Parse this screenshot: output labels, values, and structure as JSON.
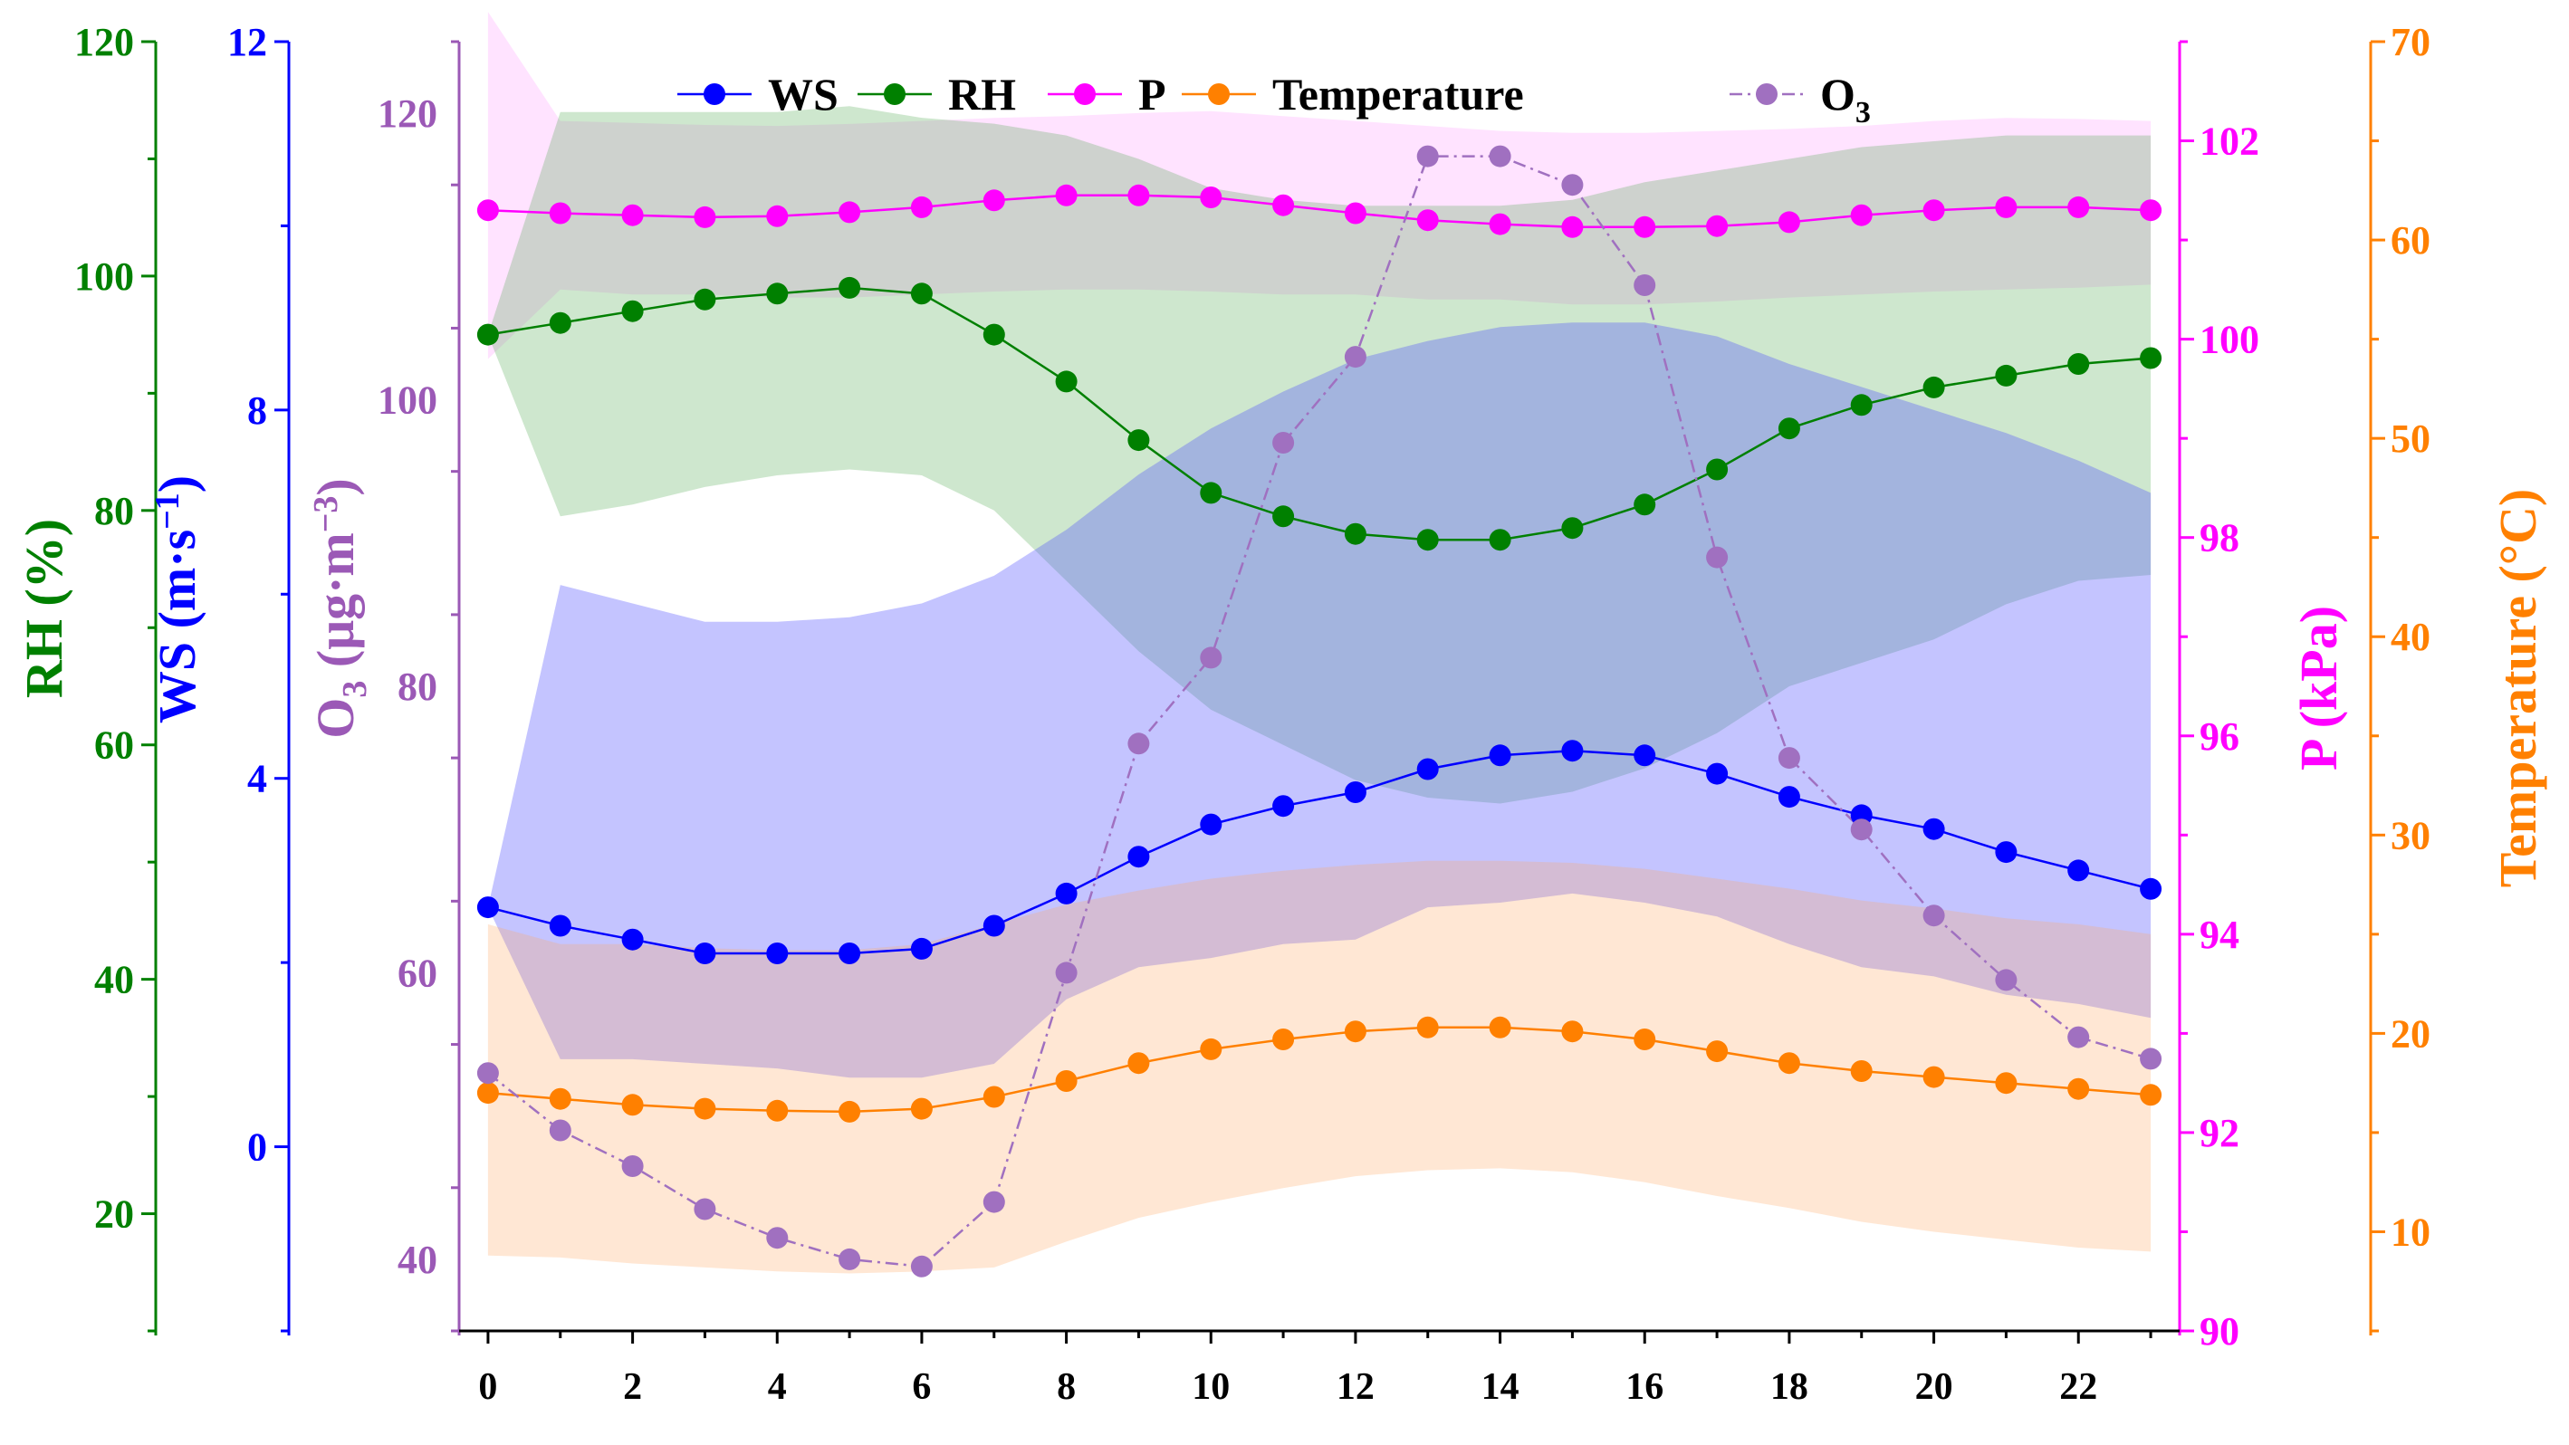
{
  "chart_data": {
    "type": "line",
    "x": [
      0,
      1,
      2,
      3,
      4,
      5,
      6,
      7,
      8,
      9,
      10,
      11,
      12,
      13,
      14,
      15,
      16,
      17,
      18,
      19,
      20,
      21,
      22,
      23
    ],
    "x_ticks": [
      0,
      2,
      4,
      6,
      8,
      10,
      12,
      14,
      16,
      18,
      20,
      22
    ],
    "xlim": [
      -0.4,
      23.4
    ],
    "axes": {
      "rh": {
        "label": "RH (%)",
        "range": [
          10,
          120
        ],
        "ticks": [
          20,
          40,
          60,
          80,
          100,
          120
        ],
        "color": "#008000"
      },
      "ws": {
        "label": "WS (m·s⁻¹)",
        "label_main": "WS",
        "label_unit": "(m·s",
        "label_sup": "−1",
        "label_end": ")",
        "range": [
          -2,
          12
        ],
        "ticks": [
          0,
          4,
          8,
          12
        ],
        "color": "#0000ff"
      },
      "o3": {
        "label": "O₃ (μg·m⁻³)",
        "label_main": "O",
        "label_sub": "3",
        "label_unit": " (μg·m",
        "label_sup": "−3",
        "label_end": ")",
        "range": [
          35,
          125
        ],
        "ticks": [
          40,
          60,
          80,
          100,
          120
        ],
        "color": "#9b59b6"
      },
      "p": {
        "label": "P (kPa)",
        "range": [
          90,
          103
        ],
        "ticks": [
          90,
          92,
          94,
          96,
          98,
          100,
          102
        ],
        "color": "#ff00ff"
      },
      "temp": {
        "label": "Temperature (°C)",
        "range": [
          5,
          70
        ],
        "ticks": [
          10,
          20,
          30,
          40,
          50,
          60,
          70
        ],
        "color": "#ff8000"
      }
    },
    "legend": {
      "placement": "top",
      "entries": [
        {
          "key": "ws",
          "label": "WS"
        },
        {
          "key": "rh",
          "label": "RH"
        },
        {
          "key": "p",
          "label": "P"
        },
        {
          "key": "temp",
          "label": "Temperature"
        },
        {
          "key": "o3",
          "label": "O",
          "sub": "3"
        }
      ]
    },
    "series": [
      {
        "key": "ws",
        "name": "WS",
        "axis": "ws",
        "color": "#0000ff",
        "band_fill": "rgba(70,70,255,0.32)",
        "dash": false,
        "values": [
          2.6,
          2.4,
          2.25,
          2.1,
          2.1,
          2.1,
          2.15,
          2.4,
          2.75,
          3.15,
          3.5,
          3.7,
          3.85,
          4.1,
          4.25,
          4.3,
          4.25,
          4.05,
          3.8,
          3.6,
          3.45,
          3.2,
          3.0,
          2.8
        ],
        "upper": [
          2.6,
          6.1,
          5.9,
          5.7,
          5.7,
          5.75,
          5.9,
          6.2,
          6.7,
          7.3,
          7.8,
          8.2,
          8.55,
          8.75,
          8.9,
          8.95,
          8.95,
          8.8,
          8.5,
          8.25,
          8.0,
          7.75,
          7.45,
          7.1
        ],
        "lower": [
          2.6,
          0.95,
          0.95,
          0.9,
          0.85,
          0.75,
          0.75,
          0.9,
          1.6,
          1.95,
          2.05,
          2.2,
          2.25,
          2.6,
          2.65,
          2.75,
          2.65,
          2.5,
          2.2,
          1.95,
          1.85,
          1.65,
          1.55,
          1.4
        ]
      },
      {
        "key": "rh",
        "name": "RH",
        "axis": "rh",
        "color": "#008000",
        "band_fill": "rgba(60,160,60,0.25)",
        "dash": false,
        "values": [
          95,
          96,
          97,
          98,
          98.5,
          99,
          98.5,
          95,
          91,
          86,
          81.5,
          79.5,
          78,
          77.5,
          77.5,
          78.5,
          80.5,
          83.5,
          87,
          89,
          90.5,
          91.5,
          92.5,
          93
        ],
        "upper": [
          95,
          114,
          114,
          114,
          114,
          114.5,
          113.5,
          113,
          112,
          110,
          107.5,
          106.5,
          106,
          106,
          106,
          106.5,
          108,
          109,
          110,
          111,
          111.5,
          112,
          112,
          112
        ],
        "lower": [
          95,
          79.5,
          80.5,
          82,
          83,
          83.5,
          83,
          80,
          74,
          68,
          63,
          60,
          57,
          55.5,
          55,
          56,
          58,
          61,
          65,
          67,
          69,
          72,
          74,
          74.5
        ]
      },
      {
        "key": "p",
        "name": "P",
        "axis": "p",
        "color": "#ff00ff",
        "band_fill": "rgba(255,100,255,0.18)",
        "dash": false,
        "values": [
          101.3,
          101.27,
          101.25,
          101.23,
          101.24,
          101.28,
          101.33,
          101.4,
          101.45,
          101.45,
          101.43,
          101.35,
          101.27,
          101.2,
          101.16,
          101.13,
          101.13,
          101.14,
          101.18,
          101.25,
          101.3,
          101.33,
          101.33,
          101.3
        ],
        "upper": [
          103.3,
          102.2,
          102.18,
          102.16,
          102.15,
          102.17,
          102.2,
          102.23,
          102.25,
          102.28,
          102.3,
          102.25,
          102.2,
          102.15,
          102.1,
          102.08,
          102.08,
          102.1,
          102.12,
          102.15,
          102.2,
          102.23,
          102.22,
          102.2
        ],
        "lower": [
          99.8,
          100.5,
          100.45,
          100.45,
          100.42,
          100.42,
          100.45,
          100.48,
          100.5,
          100.5,
          100.48,
          100.45,
          100.45,
          100.4,
          100.4,
          100.35,
          100.35,
          100.38,
          100.42,
          100.45,
          100.48,
          100.5,
          100.52,
          100.55
        ]
      },
      {
        "key": "temp",
        "name": "Temperature",
        "axis": "temp",
        "color": "#ff8000",
        "band_fill": "rgba(255,170,100,0.28)",
        "dash": false,
        "values": [
          17,
          16.7,
          16.4,
          16.2,
          16.1,
          16.05,
          16.2,
          16.8,
          17.6,
          18.5,
          19.2,
          19.7,
          20.1,
          20.3,
          20.3,
          20.1,
          19.7,
          19.1,
          18.5,
          18.1,
          17.8,
          17.5,
          17.2,
          16.9
        ],
        "upper": [
          25.5,
          24.5,
          24.5,
          24.3,
          24.2,
          24.2,
          24.5,
          25.5,
          26.5,
          27.2,
          27.8,
          28.2,
          28.5,
          28.7,
          28.7,
          28.6,
          28.3,
          27.8,
          27.3,
          26.7,
          26.3,
          25.8,
          25.5,
          25
        ],
        "lower": [
          8.8,
          8.7,
          8.4,
          8.2,
          8.0,
          7.9,
          8.0,
          8.2,
          9.5,
          10.7,
          11.5,
          12.2,
          12.8,
          13.1,
          13.2,
          13.0,
          12.5,
          11.8,
          11.2,
          10.5,
          10.0,
          9.6,
          9.2,
          9.0
        ]
      },
      {
        "key": "o3",
        "name": "O3",
        "axis": "o3",
        "color": "#a070c0",
        "band_fill": "none",
        "dash": true,
        "values": [
          53,
          49,
          46.5,
          43.5,
          41.5,
          40,
          39.5,
          44,
          60,
          76,
          82,
          97,
          103,
          117,
          117,
          115,
          108,
          89,
          75,
          70,
          64,
          59.5,
          55.5,
          54
        ]
      }
    ]
  }
}
